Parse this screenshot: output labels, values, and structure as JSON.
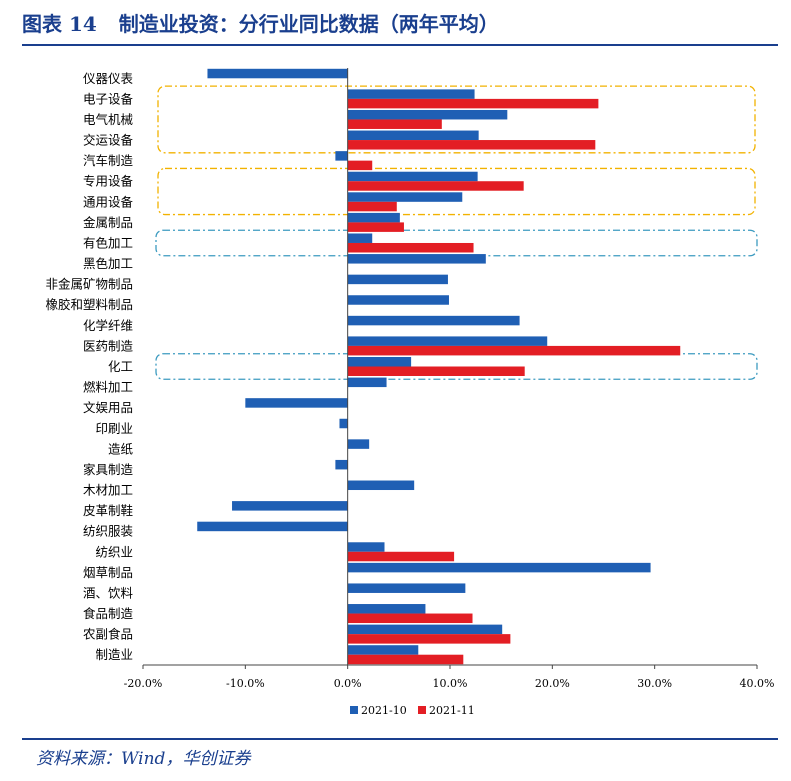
{
  "title": {
    "number": "图表 14",
    "text": "制造业投资：分行业同比数据（两年平均）"
  },
  "source": "资料来源：Wind，华创证券",
  "colors": {
    "series1": "#1f5fb4",
    "series2": "#e31e24",
    "box_orange": "#f2b200",
    "box_teal": "#3d9bc0",
    "title": "#1a3f8e"
  },
  "chart_data": {
    "type": "bar",
    "orientation": "horizontal",
    "title": "制造业投资：分行业同比数据（两年平均）",
    "categories": [
      "仪器仪表",
      "电子设备",
      "电气机械",
      "交运设备",
      "汽车制造",
      "专用设备",
      "通用设备",
      "金属制品",
      "有色加工",
      "黑色加工",
      "非金属矿物制品",
      "橡胶和塑料制品",
      "化学纤维",
      "医药制造",
      "化工",
      "燃料加工",
      "文娱用品",
      "印刷业",
      "造纸",
      "家具制造",
      "木材加工",
      "皮革制鞋",
      "纺织服装",
      "纺织业",
      "烟草制品",
      "酒、饮料",
      "食品制造",
      "农副食品",
      "制造业"
    ],
    "series": [
      {
        "name": "2021-10",
        "values": [
          -13.7,
          12.4,
          15.6,
          12.8,
          -1.2,
          12.7,
          11.2,
          5.1,
          2.4,
          13.5,
          9.8,
          9.9,
          16.8,
          19.5,
          6.2,
          3.8,
          -10.0,
          -0.8,
          2.1,
          -1.2,
          6.5,
          -11.3,
          -14.7,
          3.6,
          29.6,
          11.5,
          7.6,
          15.1,
          6.9
        ]
      },
      {
        "name": "2021-11",
        "values": [
          null,
          24.5,
          9.2,
          24.2,
          2.4,
          17.2,
          4.8,
          5.5,
          12.3,
          null,
          null,
          null,
          null,
          32.5,
          17.3,
          null,
          null,
          null,
          null,
          null,
          null,
          null,
          null,
          10.4,
          null,
          null,
          12.2,
          15.9,
          11.3
        ]
      }
    ],
    "xlim": [
      -20,
      40
    ],
    "xticks": [
      "-20.0%",
      "-10.0%",
      "0.0%",
      "10.0%",
      "20.0%",
      "30.0%",
      "40.0%"
    ],
    "legend": [
      "2021-10",
      "2021-11"
    ],
    "legend_position": "bottom",
    "highlight_boxes": [
      {
        "style": "orange-dashdot",
        "from": "电子设备",
        "to": "交运设备"
      },
      {
        "style": "orange-dashdot",
        "from": "专用设备",
        "to": "通用设备"
      },
      {
        "style": "teal-dashdot",
        "from": "有色加工",
        "to": "有色加工"
      },
      {
        "style": "teal-dashdot",
        "from": "化工",
        "to": "化工"
      }
    ]
  }
}
